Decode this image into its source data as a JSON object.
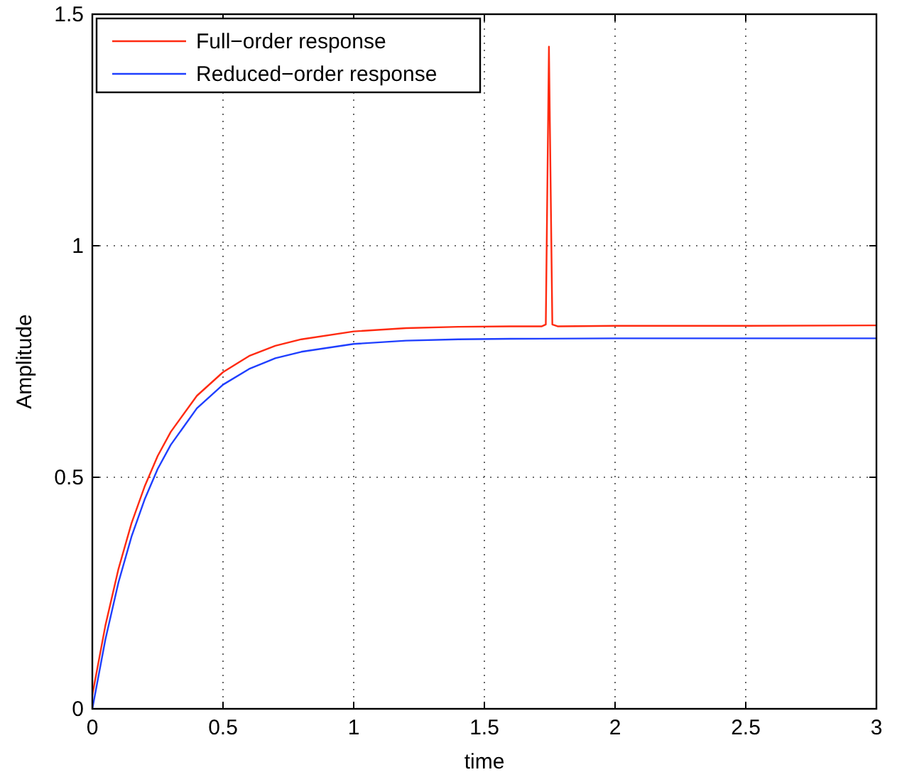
{
  "chart_data": {
    "type": "line",
    "xlabel": "time",
    "ylabel": "Amplitude",
    "xlim": [
      0,
      3
    ],
    "ylim": [
      0,
      1.5
    ],
    "xticks": [
      0,
      0.5,
      1,
      1.5,
      2,
      2.5,
      3
    ],
    "yticks": [
      0,
      0.5,
      1,
      1.5
    ],
    "grid": true,
    "legend": "top left",
    "line_style": "solid",
    "series": [
      {
        "name": "Full−order response",
        "color": "#ff2a10",
        "x": [
          0,
          0.05,
          0.1,
          0.15,
          0.2,
          0.25,
          0.3,
          0.4,
          0.5,
          0.6,
          0.7,
          0.8,
          1,
          1.2,
          1.4,
          1.6,
          1.72,
          1.735,
          1.747,
          1.76,
          1.78,
          2,
          2.5,
          3
        ],
        "values": [
          0.03,
          0.18,
          0.302,
          0.401,
          0.48,
          0.546,
          0.598,
          0.676,
          0.727,
          0.762,
          0.784,
          0.798,
          0.815,
          0.822,
          0.825,
          0.826,
          0.826,
          0.83,
          1.43,
          0.83,
          0.826,
          0.827,
          0.827,
          0.828
        ]
      },
      {
        "name": "Reduced−order response",
        "color": "#1f3fff",
        "x": [
          0,
          0.05,
          0.1,
          0.15,
          0.2,
          0.25,
          0.3,
          0.4,
          0.5,
          0.6,
          0.7,
          0.8,
          1,
          1.2,
          1.4,
          1.6,
          2,
          2.5,
          3
        ],
        "values": [
          0,
          0.15,
          0.273,
          0.372,
          0.452,
          0.518,
          0.57,
          0.649,
          0.7,
          0.734,
          0.757,
          0.771,
          0.788,
          0.795,
          0.798,
          0.799,
          0.8,
          0.8,
          0.8
        ]
      }
    ]
  }
}
